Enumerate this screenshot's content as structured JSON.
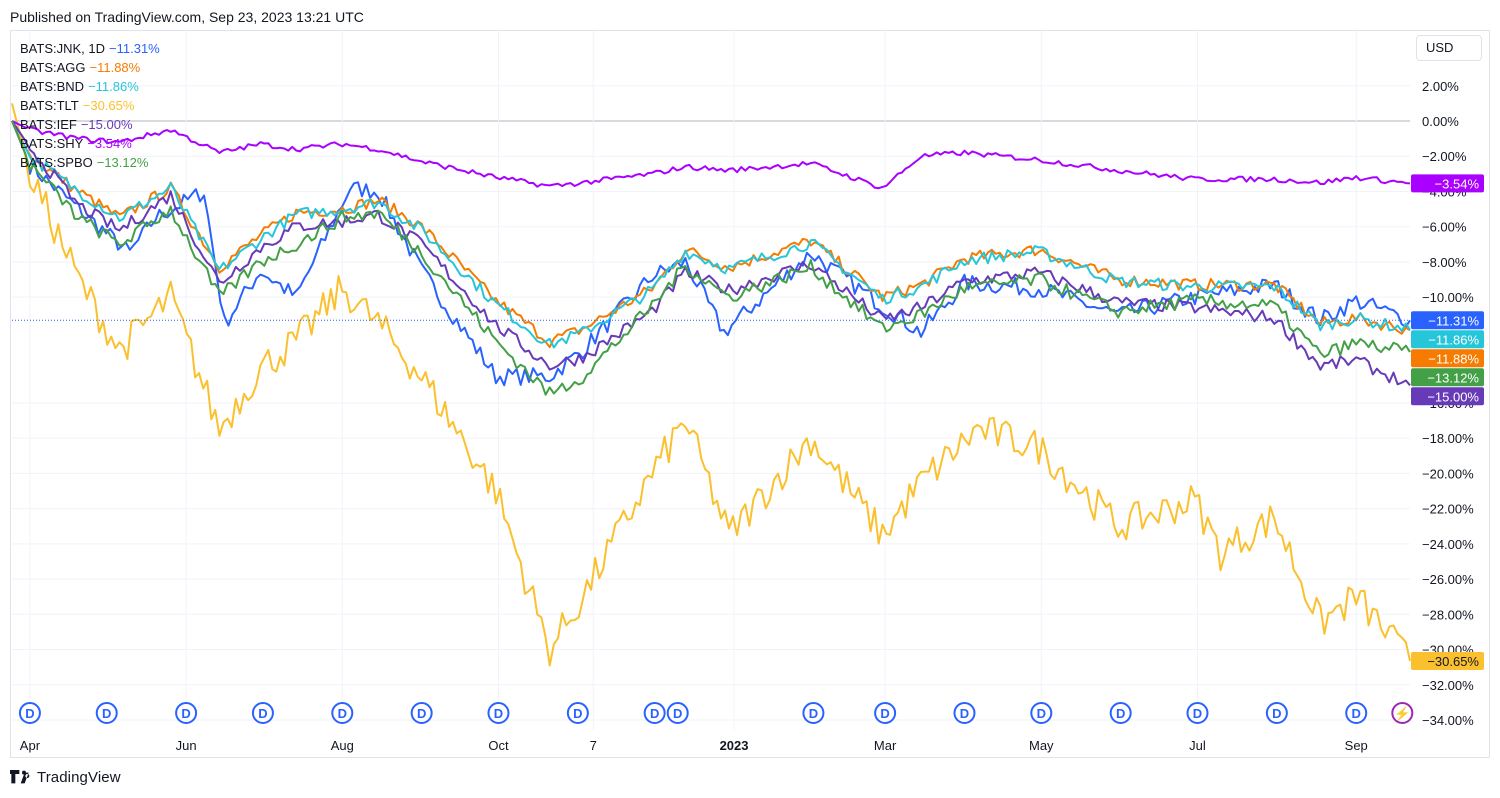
{
  "header": {
    "published": "Published on TradingView.com, Sep 23, 2023 13:21 UTC"
  },
  "toolbar": {
    "currency": "USD"
  },
  "footer": {
    "brand": "TradingView",
    "logo_icon": "tradingview-logo-icon"
  },
  "colors": {
    "JNK": "#2962ff",
    "AGG": "#f57c00",
    "BND": "#26c6da",
    "TLT": "#fbc02d",
    "IEF": "#673ab7",
    "SHY": "#aa00ff",
    "SPBO": "#43a047",
    "grid": "#f0f3fa",
    "zero": "#b2b5be",
    "event_marker": "#2962ff"
  },
  "chart_data": {
    "type": "line",
    "title": "",
    "xlabel": "",
    "ylabel": "",
    "ylim": [
      -34,
      3
    ],
    "y_unit": "%",
    "x_start": "2022-03-25",
    "x_end": "2023-09-22",
    "x_ticks": [
      {
        "label": "Apr",
        "date": "2022-04-01",
        "bold": false
      },
      {
        "label": "Jun",
        "date": "2022-06-01",
        "bold": false
      },
      {
        "label": "Aug",
        "date": "2022-08-01",
        "bold": false
      },
      {
        "label": "Oct",
        "date": "2022-10-01",
        "bold": false
      },
      {
        "label": "7",
        "date": "2022-11-07",
        "bold": false
      },
      {
        "label": "2023",
        "date": "2023-01-01",
        "bold": true
      },
      {
        "label": "Mar",
        "date": "2023-03-01",
        "bold": false
      },
      {
        "label": "May",
        "date": "2023-05-01",
        "bold": false
      },
      {
        "label": "Jul",
        "date": "2023-07-01",
        "bold": false
      },
      {
        "label": "Sep",
        "date": "2023-09-01",
        "bold": false
      }
    ],
    "y_ticks": [
      {
        "value": 2,
        "label": "2.00%"
      },
      {
        "value": 0,
        "label": "0.00%"
      },
      {
        "value": -2,
        "label": "−2.00%"
      },
      {
        "value": -4,
        "label": "−4.00%"
      },
      {
        "value": -6,
        "label": "−6.00%"
      },
      {
        "value": -8,
        "label": "−8.00%"
      },
      {
        "value": -10,
        "label": "−10.00%"
      },
      {
        "value": -16,
        "label": "−16.00%"
      },
      {
        "value": -18,
        "label": "−18.00%"
      },
      {
        "value": -20,
        "label": "−20.00%"
      },
      {
        "value": -22,
        "label": "−22.00%"
      },
      {
        "value": -24,
        "label": "−24.00%"
      },
      {
        "value": -26,
        "label": "−26.00%"
      },
      {
        "value": -28,
        "label": "−28.00%"
      },
      {
        "value": -30,
        "label": "−30.00%"
      },
      {
        "value": -32,
        "label": "−32.00%"
      },
      {
        "value": -34,
        "label": "−34.00%"
      }
    ],
    "series": [
      {
        "key": "JNK",
        "name": "BATS:JNK, 1D",
        "last": "−11.31%",
        "last_value": -11.31,
        "points": [
          [
            "2022-03-25",
            0
          ],
          [
            "2022-04-01",
            -2.5
          ],
          [
            "2022-04-20",
            -5
          ],
          [
            "2022-05-10",
            -7.5
          ],
          [
            "2022-05-20",
            -5.5
          ],
          [
            "2022-06-08",
            -4
          ],
          [
            "2022-06-16",
            -11.5
          ],
          [
            "2022-06-30",
            -8.5
          ],
          [
            "2022-07-14",
            -10
          ],
          [
            "2022-08-04",
            -3.8
          ],
          [
            "2022-08-15",
            -4
          ],
          [
            "2022-09-01",
            -8.5
          ],
          [
            "2022-09-30",
            -14.5
          ],
          [
            "2022-10-21",
            -14.5
          ],
          [
            "2022-11-03",
            -13
          ],
          [
            "2022-11-30",
            -8.8
          ],
          [
            "2022-12-13",
            -8
          ],
          [
            "2022-12-28",
            -12
          ],
          [
            "2023-01-31",
            -7.5
          ],
          [
            "2023-02-28",
            -10.5
          ],
          [
            "2023-03-15",
            -12
          ],
          [
            "2023-04-01",
            -9.2
          ],
          [
            "2023-04-30",
            -9.5
          ],
          [
            "2023-05-31",
            -11
          ],
          [
            "2023-06-30",
            -10
          ],
          [
            "2023-07-31",
            -9.3
          ],
          [
            "2023-08-18",
            -11.3
          ],
          [
            "2023-09-01",
            -10.2
          ],
          [
            "2023-09-22",
            -11.31
          ]
        ]
      },
      {
        "key": "AGG",
        "name": "BATS:AGG",
        "last": "−11.88%",
        "last_value": -11.88,
        "points": [
          [
            "2022-03-25",
            0
          ],
          [
            "2022-04-01",
            -2
          ],
          [
            "2022-04-20",
            -4
          ],
          [
            "2022-05-06",
            -5.5
          ],
          [
            "2022-05-26",
            -3.8
          ],
          [
            "2022-06-14",
            -8.3
          ],
          [
            "2022-06-30",
            -6.5
          ],
          [
            "2022-07-14",
            -5.2
          ],
          [
            "2022-08-01",
            -5
          ],
          [
            "2022-08-15",
            -4.5
          ],
          [
            "2022-09-01",
            -6
          ],
          [
            "2022-09-30",
            -10.2
          ],
          [
            "2022-10-21",
            -12.5
          ],
          [
            "2022-11-03",
            -11.8
          ],
          [
            "2022-11-30",
            -9.5
          ],
          [
            "2022-12-13",
            -7.3
          ],
          [
            "2022-12-30",
            -8.3
          ],
          [
            "2023-01-31",
            -6.8
          ],
          [
            "2023-02-28",
            -10
          ],
          [
            "2023-03-15",
            -9.3
          ],
          [
            "2023-04-01",
            -7.8
          ],
          [
            "2023-04-30",
            -7.3
          ],
          [
            "2023-05-31",
            -9
          ],
          [
            "2023-06-30",
            -9.3
          ],
          [
            "2023-07-31",
            -9.3
          ],
          [
            "2023-08-18",
            -11.5
          ],
          [
            "2023-09-01",
            -11.2
          ],
          [
            "2023-09-22",
            -11.88
          ]
        ]
      },
      {
        "key": "BND",
        "name": "BATS:BND",
        "last": "−11.86%",
        "last_value": -11.86,
        "points": [
          [
            "2022-03-25",
            0
          ],
          [
            "2022-04-01",
            -2
          ],
          [
            "2022-04-20",
            -4
          ],
          [
            "2022-05-06",
            -5.5
          ],
          [
            "2022-05-26",
            -3.8
          ],
          [
            "2022-06-14",
            -8.5
          ],
          [
            "2022-06-30",
            -6.7
          ],
          [
            "2022-07-14",
            -5.3
          ],
          [
            "2022-08-01",
            -5
          ],
          [
            "2022-08-15",
            -4.6
          ],
          [
            "2022-09-01",
            -6.2
          ],
          [
            "2022-09-30",
            -10.4
          ],
          [
            "2022-10-21",
            -12.7
          ],
          [
            "2022-11-03",
            -12
          ],
          [
            "2022-11-30",
            -9.6
          ],
          [
            "2022-12-13",
            -7.4
          ],
          [
            "2022-12-30",
            -8.4
          ],
          [
            "2023-01-31",
            -6.9
          ],
          [
            "2023-02-28",
            -10.1
          ],
          [
            "2023-03-15",
            -9.4
          ],
          [
            "2023-04-01",
            -7.9
          ],
          [
            "2023-04-30",
            -7.4
          ],
          [
            "2023-05-31",
            -9.1
          ],
          [
            "2023-06-30",
            -9.4
          ],
          [
            "2023-07-31",
            -9.4
          ],
          [
            "2023-08-18",
            -11.6
          ],
          [
            "2023-09-01",
            -11.2
          ],
          [
            "2023-09-22",
            -11.86
          ]
        ]
      },
      {
        "key": "TLT",
        "name": "BATS:TLT",
        "last": "−30.65%",
        "last_value": -30.65,
        "points": [
          [
            "2022-03-25",
            1
          ],
          [
            "2022-04-01",
            -3
          ],
          [
            "2022-04-20",
            -9
          ],
          [
            "2022-05-06",
            -13
          ],
          [
            "2022-05-26",
            -10
          ],
          [
            "2022-06-14",
            -17.5
          ],
          [
            "2022-06-30",
            -14
          ],
          [
            "2022-07-14",
            -12.5
          ],
          [
            "2022-08-01",
            -9.5
          ],
          [
            "2022-08-15",
            -11.5
          ],
          [
            "2022-09-01",
            -14.5
          ],
          [
            "2022-09-30",
            -21
          ],
          [
            "2022-10-21",
            -30
          ],
          [
            "2022-11-03",
            -27
          ],
          [
            "2022-11-30",
            -20
          ],
          [
            "2022-12-13",
            -17
          ],
          [
            "2022-12-30",
            -23.5
          ],
          [
            "2023-01-31",
            -18
          ],
          [
            "2023-02-28",
            -23.5
          ],
          [
            "2023-03-15",
            -20.5
          ],
          [
            "2023-04-06",
            -17.5
          ],
          [
            "2023-04-30",
            -18.5
          ],
          [
            "2023-05-31",
            -23
          ],
          [
            "2023-06-30",
            -21.5
          ],
          [
            "2023-07-10",
            -24.5
          ],
          [
            "2023-07-31",
            -22.5
          ],
          [
            "2023-08-18",
            -28.5
          ],
          [
            "2023-09-01",
            -27
          ],
          [
            "2023-09-22",
            -30.65
          ]
        ]
      },
      {
        "key": "IEF",
        "name": "BATS:IEF",
        "last": "−15.00%",
        "last_value": -15.0,
        "points": [
          [
            "2022-03-25",
            0
          ],
          [
            "2022-04-01",
            -1.5
          ],
          [
            "2022-04-20",
            -4.8
          ],
          [
            "2022-05-06",
            -6.2
          ],
          [
            "2022-05-26",
            -4.2
          ],
          [
            "2022-06-14",
            -9.2
          ],
          [
            "2022-06-30",
            -7.2
          ],
          [
            "2022-07-14",
            -6
          ],
          [
            "2022-08-01",
            -5.7
          ],
          [
            "2022-08-15",
            -5.3
          ],
          [
            "2022-09-01",
            -7
          ],
          [
            "2022-09-30",
            -11.6
          ],
          [
            "2022-10-21",
            -13.9
          ],
          [
            "2022-11-03",
            -13.4
          ],
          [
            "2022-11-30",
            -10.8
          ],
          [
            "2022-12-13",
            -8.6
          ],
          [
            "2022-12-30",
            -9.6
          ],
          [
            "2023-01-31",
            -8.1
          ],
          [
            "2023-02-28",
            -11.3
          ],
          [
            "2023-03-15",
            -10.6
          ],
          [
            "2023-04-01",
            -9.1
          ],
          [
            "2023-04-30",
            -8.6
          ],
          [
            "2023-05-31",
            -10.3
          ],
          [
            "2023-06-30",
            -10.6
          ],
          [
            "2023-07-31",
            -11.2
          ],
          [
            "2023-08-18",
            -13.9
          ],
          [
            "2023-09-01",
            -13.6
          ],
          [
            "2023-09-22",
            -15.0
          ]
        ]
      },
      {
        "key": "SHY",
        "name": "BATS:SHY",
        "last": "−3.54%",
        "last_value": -3.54,
        "points": [
          [
            "2022-03-25",
            0
          ],
          [
            "2022-04-01",
            -0.5
          ],
          [
            "2022-04-20",
            -1
          ],
          [
            "2022-05-06",
            -1.2
          ],
          [
            "2022-05-26",
            -0.5
          ],
          [
            "2022-06-14",
            -1.8
          ],
          [
            "2022-06-30",
            -1.3
          ],
          [
            "2022-07-14",
            -1.6
          ],
          [
            "2022-08-01",
            -1.3
          ],
          [
            "2022-08-15",
            -1.6
          ],
          [
            "2022-09-01",
            -2.3
          ],
          [
            "2022-09-30",
            -3.2
          ],
          [
            "2022-10-21",
            -3.7
          ],
          [
            "2022-11-03",
            -3.5
          ],
          [
            "2022-11-30",
            -3
          ],
          [
            "2022-12-13",
            -2.6
          ],
          [
            "2022-12-30",
            -2.8
          ],
          [
            "2023-01-31",
            -2.4
          ],
          [
            "2023-02-28",
            -3.8
          ],
          [
            "2023-03-15",
            -2
          ],
          [
            "2023-04-01",
            -1.8
          ],
          [
            "2023-04-30",
            -2.2
          ],
          [
            "2023-05-31",
            -2.8
          ],
          [
            "2023-06-30",
            -3.3
          ],
          [
            "2023-07-31",
            -3.3
          ],
          [
            "2023-08-18",
            -3.5
          ],
          [
            "2023-09-01",
            -3.2
          ],
          [
            "2023-09-22",
            -3.54
          ]
        ]
      },
      {
        "key": "SPBO",
        "name": "BATS:SPBO",
        "last": "−13.12%",
        "last_value": -13.12,
        "points": [
          [
            "2022-03-25",
            0
          ],
          [
            "2022-04-01",
            -2.5
          ],
          [
            "2022-04-20",
            -5.5
          ],
          [
            "2022-05-06",
            -7
          ],
          [
            "2022-05-26",
            -5
          ],
          [
            "2022-06-14",
            -10
          ],
          [
            "2022-06-30",
            -8
          ],
          [
            "2022-07-14",
            -7
          ],
          [
            "2022-08-01",
            -5.5
          ],
          [
            "2022-08-15",
            -5.2
          ],
          [
            "2022-09-01",
            -7.5
          ],
          [
            "2022-09-30",
            -12.5
          ],
          [
            "2022-10-21",
            -15.5
          ],
          [
            "2022-11-03",
            -14.5
          ],
          [
            "2022-11-30",
            -10.5
          ],
          [
            "2022-12-13",
            -8.2
          ],
          [
            "2022-12-30",
            -10
          ],
          [
            "2023-01-31",
            -8.3
          ],
          [
            "2023-02-28",
            -11.8
          ],
          [
            "2023-03-15",
            -11
          ],
          [
            "2023-04-01",
            -9.5
          ],
          [
            "2023-04-30",
            -9
          ],
          [
            "2023-05-31",
            -10.8
          ],
          [
            "2023-06-30",
            -10.2
          ],
          [
            "2023-07-31",
            -10.5
          ],
          [
            "2023-08-18",
            -13.3
          ],
          [
            "2023-09-01",
            -12.6
          ],
          [
            "2023-09-22",
            -13.12
          ]
        ]
      }
    ],
    "event_markers": [
      {
        "label": "D",
        "date": "2022-04-01"
      },
      {
        "label": "D",
        "date": "2022-05-01"
      },
      {
        "label": "D",
        "date": "2022-06-01"
      },
      {
        "label": "D",
        "date": "2022-07-01"
      },
      {
        "label": "D",
        "date": "2022-08-01"
      },
      {
        "label": "D",
        "date": "2022-09-01"
      },
      {
        "label": "D",
        "date": "2022-10-01"
      },
      {
        "label": "D",
        "date": "2022-11-01"
      },
      {
        "label": "D",
        "date": "2022-12-01"
      },
      {
        "label": "D",
        "date": "2022-12-10"
      },
      {
        "label": "D",
        "date": "2023-02-01"
      },
      {
        "label": "D",
        "date": "2023-03-01"
      },
      {
        "label": "D",
        "date": "2023-04-01"
      },
      {
        "label": "D",
        "date": "2023-05-01"
      },
      {
        "label": "D",
        "date": "2023-06-01"
      },
      {
        "label": "D",
        "date": "2023-07-01"
      },
      {
        "label": "D",
        "date": "2023-08-01"
      },
      {
        "label": "D",
        "date": "2023-09-01"
      },
      {
        "label": "⚡",
        "date": "2023-09-19",
        "icon": "lightning-icon"
      }
    ]
  }
}
